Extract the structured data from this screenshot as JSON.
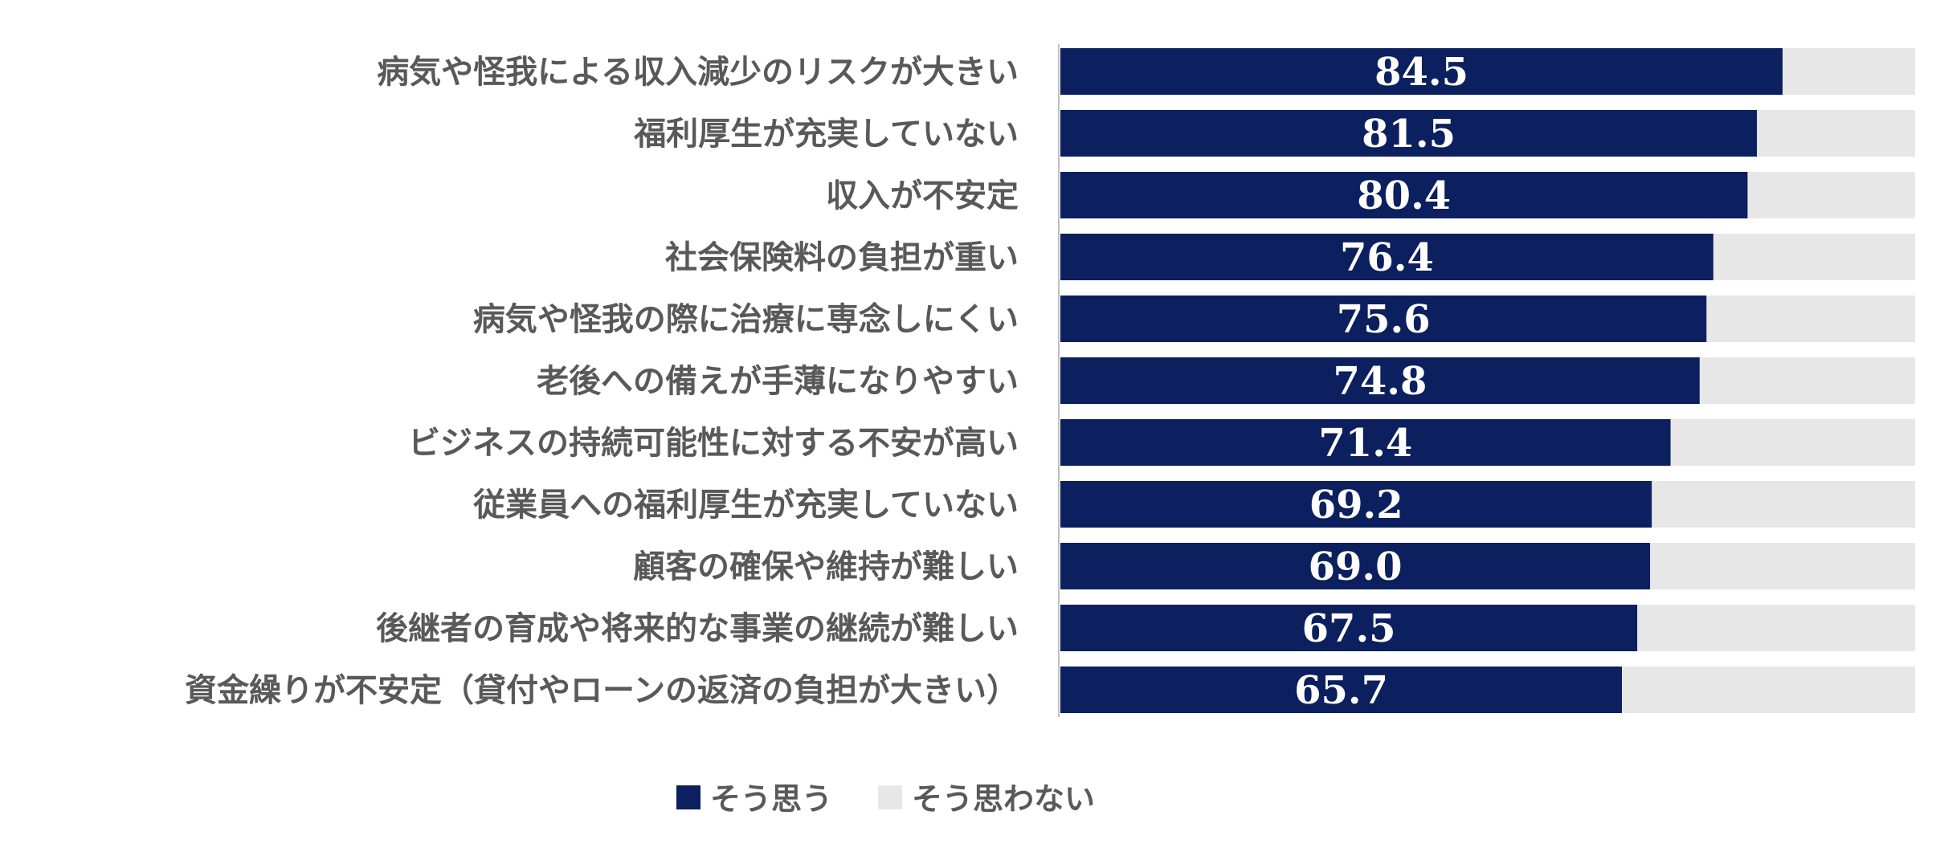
{
  "chart_data": {
    "type": "bar",
    "orientation": "horizontal",
    "stacked": true,
    "categories": [
      "病気や怪我による収入減少のリスクが大きい",
      "福利厚生が充実していない",
      "収入が不安定",
      "社会保険料の負担が重い",
      "病気や怪我の際に治療に専念しにくい",
      "老後への備えが手薄になりやすい",
      "ビジネスの持続可能性に対する不安が高い",
      "従業員への福利厚生が充実していない",
      "顧客の確保や維持が難しい",
      "後継者の育成や将来的な事業の継続が難しい",
      "資金繰りが不安定（貸付やローンの返済の負担が大きい）"
    ],
    "series": [
      {
        "name": "そう思う",
        "color": "#0c1f5e",
        "values": [
          84.5,
          81.5,
          80.4,
          76.4,
          75.6,
          74.8,
          71.4,
          69.2,
          69.0,
          67.5,
          65.7
        ],
        "labels": [
          "84.5",
          "81.5",
          "80.4",
          "76.4",
          "75.6",
          "74.8",
          "71.4",
          "69.2",
          "69.0",
          "67.5",
          "65.7"
        ]
      },
      {
        "name": "そう思わない",
        "color": "#e7e7e7",
        "values": [
          15.5,
          18.5,
          19.6,
          23.6,
          24.4,
          25.2,
          28.6,
          30.8,
          31.0,
          32.5,
          34.3
        ]
      }
    ],
    "xlim": [
      0,
      100
    ],
    "grid": false,
    "legend": "bottom"
  }
}
